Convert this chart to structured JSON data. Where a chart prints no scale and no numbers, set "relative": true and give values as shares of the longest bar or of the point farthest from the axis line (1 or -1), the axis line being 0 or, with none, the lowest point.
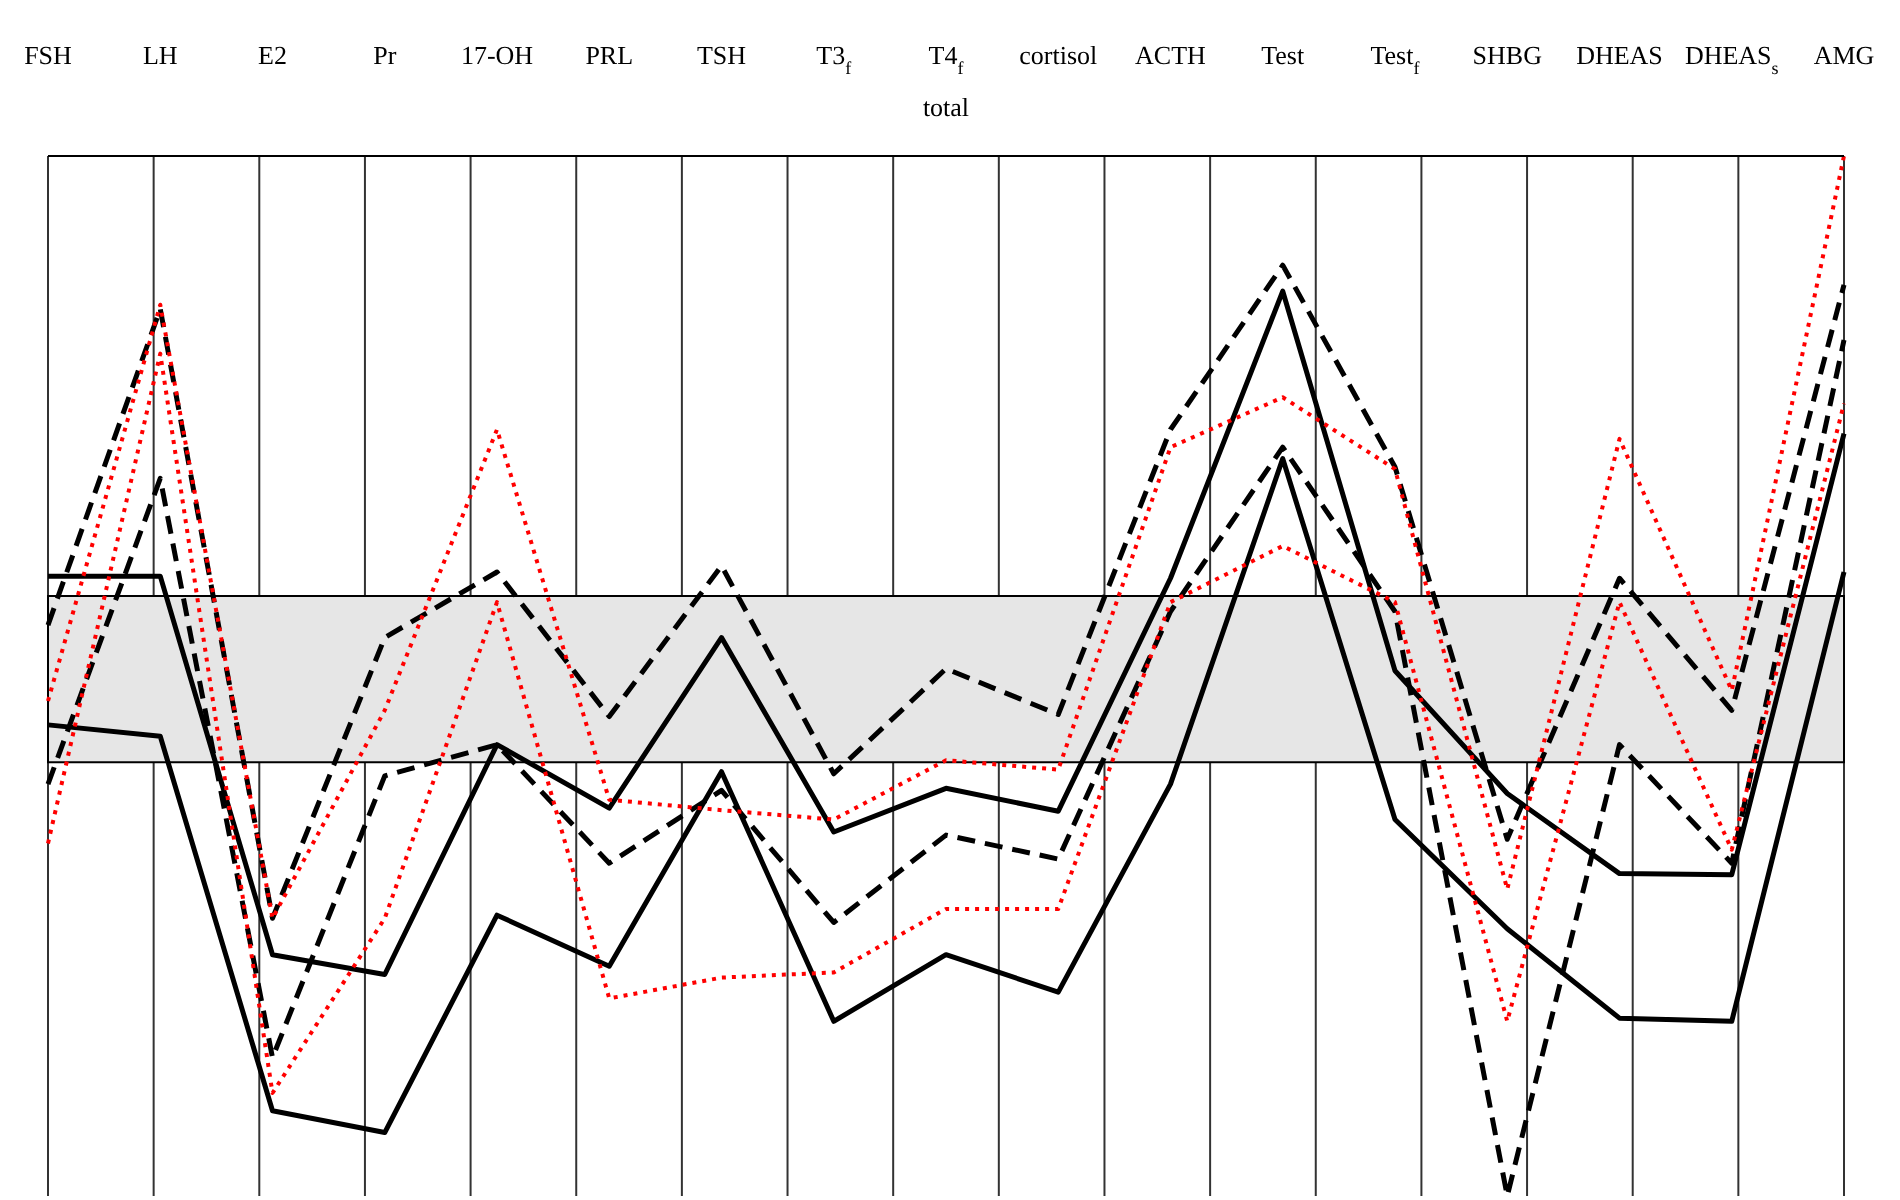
{
  "chart_data": {
    "type": "line",
    "relative": true,
    "categories": [
      "FSH",
      "LH",
      "E2",
      "Pr",
      "17-OH",
      "PRL",
      "TSH",
      "T3$_{f}$",
      "T4$_{f}$ total",
      "cortisol",
      "ACTH",
      "Test",
      "Test$_{f}$",
      "SHBG",
      "DHEAS",
      "DHEAS$_{s}$",
      "AMG"
    ],
    "series": [
      {
        "color": "#000000",
        "line_style": "solid",
        "values": [
          0.596,
          0.596,
          0.232,
          0.213,
          0.434,
          0.373,
          0.537,
          0.35,
          0.392,
          0.37,
          0.594,
          0.87,
          0.505,
          0.387,
          0.31,
          0.309,
          0.733
        ]
      },
      {
        "color": "#000000",
        "line_style": "solid",
        "values": [
          0.453,
          0.442,
          0.082,
          0.061,
          0.27,
          0.221,
          0.408,
          0.168,
          0.232,
          0.196,
          0.396,
          0.709,
          0.362,
          0.257,
          0.171,
          0.168,
          0.6
        ]
      },
      {
        "color": "#000000",
        "line_style": "dashed",
        "values": [
          0.549,
          0.853,
          0.267,
          0.537,
          0.6,
          0.461,
          0.606,
          0.406,
          0.507,
          0.463,
          0.737,
          0.895,
          0.701,
          0.343,
          0.594,
          0.467,
          0.876
        ]
      },
      {
        "color": "#000000",
        "line_style": "dashed",
        "values": [
          0.396,
          0.69,
          0.133,
          0.404,
          0.434,
          0.32,
          0.39,
          0.263,
          0.347,
          0.324,
          0.562,
          0.72,
          0.562,
          0,
          0.434,
          0.32,
          0.823
        ]
      },
      {
        "color": "#ff0000",
        "line_style": "dotted",
        "values": [
          0.476,
          0.857,
          0.267,
          0.467,
          0.737,
          0.381,
          0.371,
          0.362,
          0.419,
          0.41,
          0.72,
          0.768,
          0.699,
          0.295,
          0.728,
          0.486,
          1
        ]
      },
      {
        "color": "#ff0000",
        "line_style": "dotted",
        "values": [
          0.339,
          0.81,
          0.099,
          0.267,
          0.571,
          0.19,
          0.21,
          0.215,
          0.276,
          0.276,
          0.571,
          0.625,
          0.571,
          0.168,
          0.571,
          0.333,
          0.762
        ]
      }
    ],
    "bands": [
      {
        "axis": "y",
        "from": 0.417,
        "to": 0.577,
        "color": "#e6e6e6"
      }
    ],
    "grid": "x",
    "marker": "none",
    "legend": false
  }
}
